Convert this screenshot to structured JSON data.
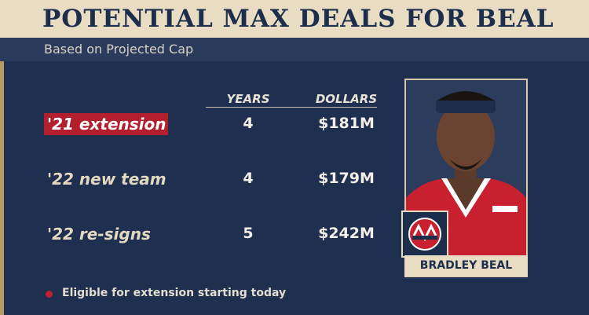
{
  "header": {
    "title": "POTENTIAL MAX DEALS FOR BEAL",
    "subtitle": "Based on Projected Cap"
  },
  "table": {
    "columns": [
      "YEARS",
      "DOLLARS"
    ],
    "rows": [
      {
        "label": "'21 extension",
        "years": 4,
        "dollars": "$181M",
        "highlighted": true
      },
      {
        "label": "'22 new team",
        "years": 4,
        "dollars": "$179M",
        "highlighted": false
      },
      {
        "label": "'22 re-signs",
        "years": 5,
        "dollars": "$242M",
        "highlighted": false
      }
    ]
  },
  "player": {
    "name": "BRADLEY BEAL"
  },
  "footnote": "Eligible for extension starting today"
}
